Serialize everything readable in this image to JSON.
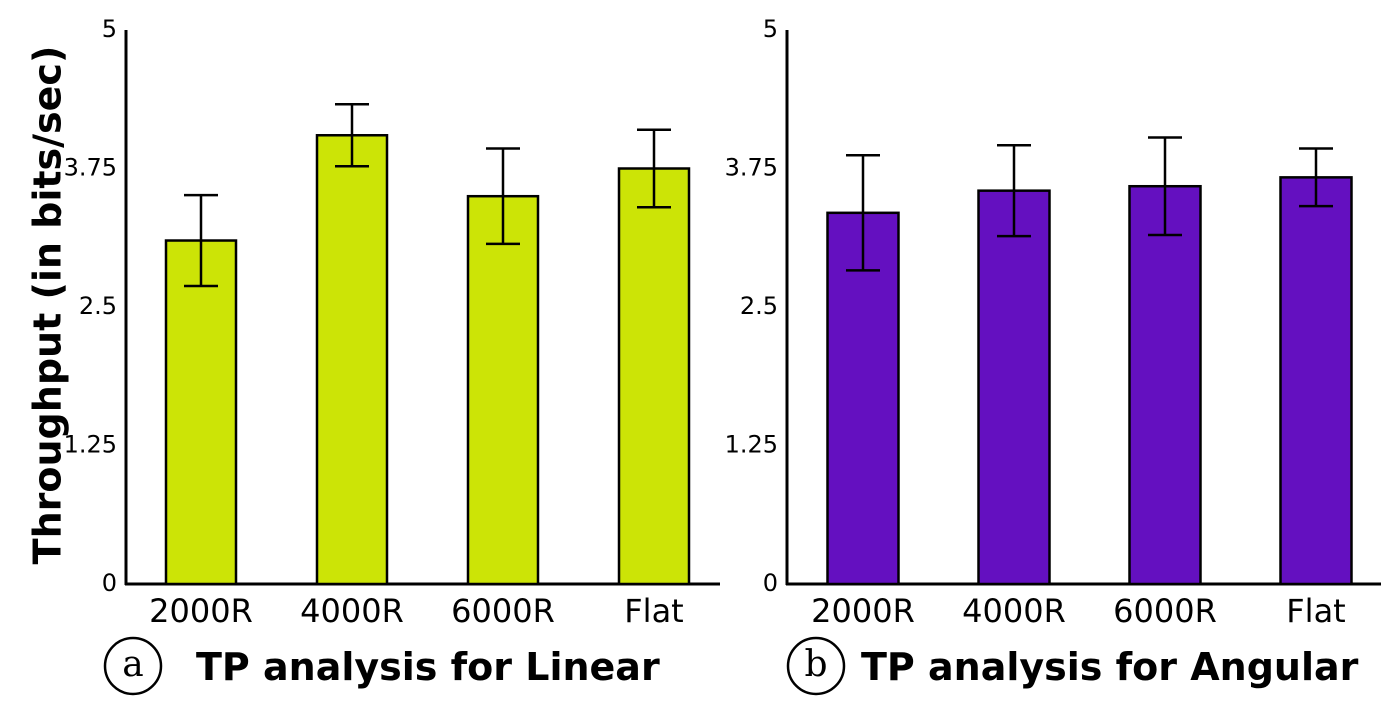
{
  "y_axis_label": "Throughput (in bits/sec)",
  "chart_data": [
    {
      "type": "bar",
      "panel": "a",
      "title": "TP analysis for Linear",
      "categories": [
        "2000R",
        "4000R",
        "6000R",
        "Flat"
      ],
      "values": [
        3.1,
        4.05,
        3.5,
        3.75
      ],
      "error": [
        0.41,
        0.28,
        0.43,
        0.35
      ],
      "ylim": [
        0,
        5
      ],
      "yticks": [
        "0",
        "1.25",
        "2.5",
        "3.75",
        "5"
      ],
      "color": "#cce406"
    },
    {
      "type": "bar",
      "panel": "b",
      "title": "TP analysis for Angular",
      "categories": [
        "2000R",
        "4000R",
        "6000R",
        "Flat"
      ],
      "values": [
        3.35,
        3.55,
        3.59,
        3.67
      ],
      "error": [
        0.52,
        0.41,
        0.44,
        0.26
      ],
      "ylim": [
        0,
        5
      ],
      "yticks": [
        "0",
        "1.25",
        "2.5",
        "3.75",
        "5"
      ],
      "color": "#6410c0"
    }
  ]
}
